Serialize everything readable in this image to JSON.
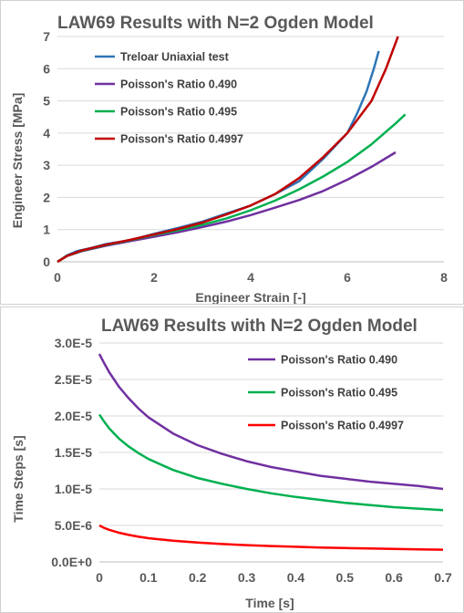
{
  "chart_data": [
    {
      "type": "line",
      "title": "LAW69 Results with N=2 Ogden Model",
      "xlabel": "Engineer Strain [-]",
      "ylabel": "Engineer Stress [MPa]",
      "xlim": [
        0,
        8
      ],
      "ylim": [
        0,
        7
      ],
      "xticks": [
        0,
        2,
        4,
        6,
        8
      ],
      "yticks": [
        0,
        1,
        2,
        3,
        4,
        5,
        6,
        7
      ],
      "grid": "horizontal",
      "legend_position": "top-left",
      "series": [
        {
          "name": "Treloar Uniaxial test",
          "color": "#2e75b6",
          "x": [
            0,
            0.2,
            0.4,
            0.7,
            1.0,
            1.5,
            2.0,
            2.5,
            3.0,
            3.5,
            4.0,
            4.5,
            5.0,
            5.5,
            6.0,
            6.2,
            6.4,
            6.55,
            6.65
          ],
          "y": [
            0,
            0.2,
            0.33,
            0.43,
            0.55,
            0.67,
            0.87,
            1.05,
            1.25,
            1.5,
            1.75,
            2.1,
            2.5,
            3.2,
            4.0,
            4.6,
            5.3,
            6.0,
            6.55
          ]
        },
        {
          "name": "Poisson's Ratio 0.490",
          "color": "#7030a0",
          "x": [
            0,
            0.2,
            0.5,
            1.0,
            1.5,
            2.0,
            2.5,
            3.0,
            3.5,
            4.0,
            4.5,
            5.0,
            5.5,
            6.0,
            6.5,
            7.0
          ],
          "y": [
            0,
            0.18,
            0.33,
            0.5,
            0.64,
            0.78,
            0.92,
            1.08,
            1.25,
            1.45,
            1.68,
            1.92,
            2.2,
            2.55,
            2.95,
            3.4
          ]
        },
        {
          "name": "Poisson's Ratio 0.495",
          "color": "#00b050",
          "x": [
            0,
            0.2,
            0.5,
            1.0,
            1.5,
            2.0,
            2.5,
            3.0,
            3.5,
            4.0,
            4.5,
            5.0,
            5.5,
            6.0,
            6.5,
            7.0,
            7.2
          ],
          "y": [
            0,
            0.18,
            0.34,
            0.52,
            0.67,
            0.83,
            0.98,
            1.15,
            1.35,
            1.6,
            1.9,
            2.25,
            2.65,
            3.1,
            3.65,
            4.3,
            4.58
          ]
        },
        {
          "name": "Poisson's Ratio 0.4997",
          "color": "#c00000",
          "x": [
            0,
            0.2,
            0.5,
            1.0,
            1.5,
            2.0,
            2.5,
            3.0,
            3.5,
            4.0,
            4.5,
            5.0,
            5.5,
            6.0,
            6.5,
            6.8,
            7.05
          ],
          "y": [
            0,
            0.18,
            0.35,
            0.53,
            0.68,
            0.85,
            1.02,
            1.22,
            1.47,
            1.75,
            2.1,
            2.6,
            3.25,
            4.0,
            5.0,
            6.0,
            7.0
          ]
        }
      ]
    },
    {
      "type": "line",
      "title": "LAW69 Results with N=2 Ogden Model",
      "xlabel": "Time [s]",
      "ylabel": "Time Steps [s]",
      "xlim": [
        0,
        0.7
      ],
      "ylim": [
        0,
        3e-05
      ],
      "xticks": [
        0,
        0.1,
        0.2,
        0.3,
        0.4,
        0.5,
        0.6,
        0.7
      ],
      "xtick_labels": [
        "0",
        "0.1",
        "0.2",
        "0.3",
        "0.4",
        "0.5",
        "0.6",
        "0.7"
      ],
      "yticks": [
        0,
        5e-06,
        1e-05,
        1.5e-05,
        2e-05,
        2.5e-05,
        3e-05
      ],
      "ytick_labels": [
        "0.0E+0",
        "5.0E-6",
        "1.0E-5",
        "1.5E-5",
        "2.0E-5",
        "2.5E-5",
        "3.0E-5"
      ],
      "grid": "horizontal",
      "legend_position": "top-right",
      "series": [
        {
          "name": "Poisson's Ratio 0.490",
          "color": "#7030a0",
          "x": [
            0,
            0.01,
            0.02,
            0.04,
            0.06,
            0.08,
            0.1,
            0.15,
            0.2,
            0.25,
            0.3,
            0.35,
            0.4,
            0.45,
            0.5,
            0.55,
            0.6,
            0.65,
            0.7
          ],
          "y": [
            2.85e-05,
            2.72e-05,
            2.6e-05,
            2.4e-05,
            2.24e-05,
            2.1e-05,
            1.98e-05,
            1.76e-05,
            1.6e-05,
            1.48e-05,
            1.38e-05,
            1.3e-05,
            1.24e-05,
            1.18e-05,
            1.14e-05,
            1.1e-05,
            1.07e-05,
            1.04e-05,
            1e-05
          ]
        },
        {
          "name": "Poisson's Ratio 0.495",
          "color": "#00b050",
          "x": [
            0,
            0.01,
            0.02,
            0.04,
            0.06,
            0.08,
            0.1,
            0.15,
            0.2,
            0.25,
            0.3,
            0.35,
            0.4,
            0.45,
            0.5,
            0.55,
            0.6,
            0.65,
            0.7
          ],
          "y": [
            2.02e-05,
            1.92e-05,
            1.83e-05,
            1.69e-05,
            1.58e-05,
            1.49e-05,
            1.41e-05,
            1.26e-05,
            1.15e-05,
            1.07e-05,
            1e-05,
            9.4e-06,
            8.9e-06,
            8.5e-06,
            8.1e-06,
            7.8e-06,
            7.5e-06,
            7.3e-06,
            7.1e-06
          ]
        },
        {
          "name": "Poisson's Ratio 0.4997",
          "color": "#ff0000",
          "x": [
            0,
            0.01,
            0.02,
            0.04,
            0.06,
            0.08,
            0.1,
            0.15,
            0.2,
            0.25,
            0.3,
            0.35,
            0.4,
            0.45,
            0.5,
            0.55,
            0.6,
            0.65,
            0.7
          ],
          "y": [
            5e-06,
            4.65e-06,
            4.4e-06,
            4e-06,
            3.7e-06,
            3.45e-06,
            3.25e-06,
            2.9e-06,
            2.65e-06,
            2.45e-06,
            2.3e-06,
            2.18e-06,
            2.07e-06,
            1.98e-06,
            1.9e-06,
            1.84e-06,
            1.78e-06,
            1.73e-06,
            1.68e-06
          ]
        }
      ]
    }
  ]
}
